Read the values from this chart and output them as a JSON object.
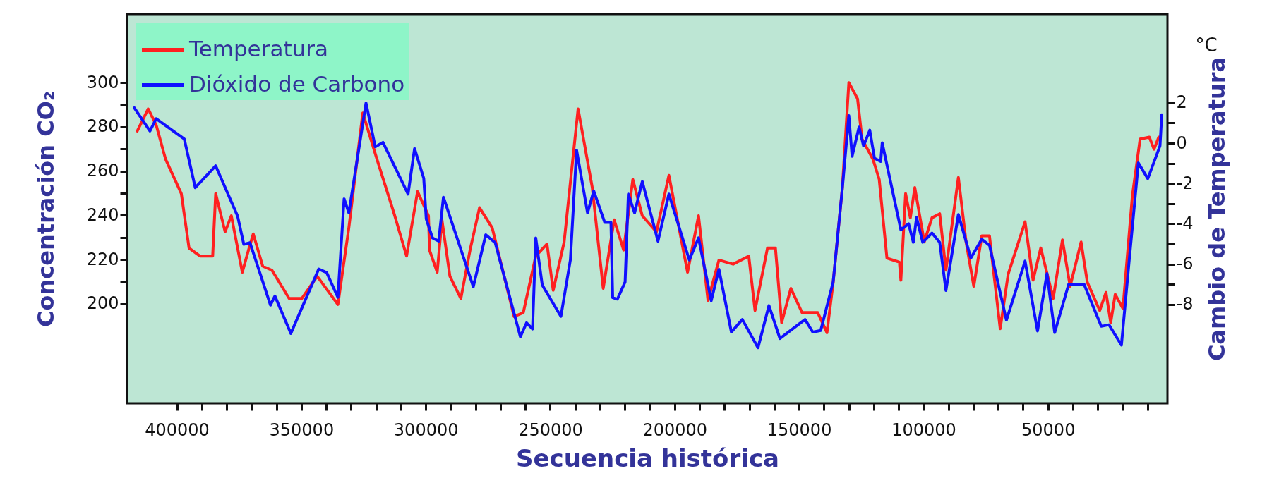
{
  "chart_data": {
    "type": "line",
    "xlabel": "Secuencia histórica",
    "ylabel": "Concentración CO₂",
    "y2label": "Cambio de Temperatura",
    "annotations": [
      "°C"
    ],
    "xlim": [
      420000,
      2000
    ],
    "xticks": [
      400000,
      {
        "value": 390000,
        "label": null
      },
      {
        "value": 380000,
        "label": null
      },
      {
        "value": 370000,
        "label": null
      },
      {
        "value": 360000,
        "label": null
      },
      350000,
      {
        "value": 340000,
        "label": null
      },
      {
        "value": 330000,
        "label": null
      },
      {
        "value": 320000,
        "label": null
      },
      {
        "value": 310000,
        "label": null
      },
      300000,
      {
        "value": 290000,
        "label": null
      },
      {
        "value": 280000,
        "label": null
      },
      {
        "value": 270000,
        "label": null
      },
      {
        "value": 260000,
        "label": null
      },
      250000,
      {
        "value": 240000,
        "label": null
      },
      {
        "value": 230000,
        "label": null
      },
      {
        "value": 220000,
        "label": null
      },
      {
        "value": 210000,
        "label": null
      },
      200000,
      {
        "value": 190000,
        "label": null
      },
      {
        "value": 180000,
        "label": null
      },
      {
        "value": 170000,
        "label": null
      },
      {
        "value": 160000,
        "label": null
      },
      150000,
      {
        "value": 140000,
        "label": null
      },
      {
        "value": 130000,
        "label": null
      },
      {
        "value": 120000,
        "label": null
      },
      {
        "value": 110000,
        "label": null
      },
      100000,
      {
        "value": 90000,
        "label": null
      },
      {
        "value": 80000,
        "label": null
      },
      {
        "value": 70000,
        "label": null
      },
      {
        "value": 60000,
        "label": null
      },
      50000,
      {
        "value": 40000,
        "label": null
      },
      {
        "value": 30000,
        "label": null
      },
      {
        "value": 20000,
        "label": null
      },
      {
        "value": 10000,
        "label": null
      }
    ],
    "ylim": [
      155,
      331
    ],
    "yticks": [
      200,
      {
        "value": 210,
        "label": null
      },
      220,
      {
        "value": 230,
        "label": null
      },
      240,
      {
        "value": 250,
        "label": null
      },
      260,
      {
        "value": 270,
        "label": null
      },
      280,
      {
        "value": 290,
        "label": null
      },
      300
    ],
    "y2lim": [
      -12.9,
      6.4
    ],
    "y2ticks": [
      -8,
      {
        "value": -7,
        "label": null
      },
      -6,
      {
        "value": -5,
        "label": null
      },
      -4,
      {
        "value": -3,
        "label": null
      },
      -2,
      {
        "value": -1,
        "label": null
      },
      0,
      {
        "value": 1,
        "label": null
      },
      2
    ],
    "grid": false,
    "legend": "top left",
    "series": [
      {
        "name": "Temperatura",
        "color": "#ff2020",
        "axis": "y2",
        "x": [
          415900,
          411500,
          408300,
          404500,
          398200,
          395100,
          390700,
          385600,
          384400,
          380600,
          378100,
          373700,
          371200,
          369300,
          365500,
          361800,
          354900,
          349800,
          343600,
          335300,
          330900,
          325300,
          319600,
          312700,
          307700,
          303300,
          298900,
          298500,
          295400,
          293500,
          290300,
          285900,
          282200,
          278400,
          273300,
          264500,
          260800,
          255800,
          251300,
          248800,
          244400,
          238800,
          233100,
          228700,
          224300,
          220500,
          216800,
          213000,
          207300,
          202300,
          194800,
          190400,
          186600,
          182200,
          176500,
          170200,
          167700,
          162700,
          159500,
          157000,
          153300,
          148800,
          142500,
          138800,
          136300,
          132600,
          130000,
          126500,
          124700,
          120300,
          117800,
          114700,
          109700,
          109100,
          107200,
          105300,
          103500,
          99700,
          96600,
          93500,
          91000,
          86000,
          82900,
          79800,
          76600,
          73500,
          69200,
          66000,
          59200,
          56000,
          52900,
          47900,
          44200,
          41100,
          36700,
          34200,
          29200,
          26700,
          24800,
          23000,
          19900,
          16100,
          13000,
          9300,
          7400,
          5500
        ],
        "values": [
          0.6,
          1.7,
          0.9,
          -0.8,
          -2.5,
          -5.2,
          -5.6,
          -5.6,
          -2.5,
          -4.4,
          -3.6,
          -6.4,
          -5.3,
          -4.5,
          -6.1,
          -6.3,
          -7.7,
          -7.7,
          -6.6,
          -8.0,
          -4.2,
          1.5,
          -0.8,
          -3.5,
          -5.6,
          -2.4,
          -3.6,
          -5.3,
          -6.4,
          -3.8,
          -6.6,
          -7.7,
          -5.3,
          -3.2,
          -4.2,
          -8.6,
          -8.4,
          -5.6,
          -5.0,
          -7.3,
          -4.9,
          1.7,
          -2.2,
          -7.2,
          -3.8,
          -5.3,
          -1.8,
          -3.6,
          -4.4,
          -1.6,
          -6.4,
          -3.6,
          -7.8,
          -5.8,
          -6.0,
          -5.6,
          -8.3,
          -5.2,
          -5.2,
          -8.9,
          -7.2,
          -8.4,
          -8.4,
          -9.4,
          -6.9,
          -2.2,
          3.0,
          2.2,
          0.2,
          -0.8,
          -1.8,
          -5.7,
          -5.9,
          -6.8,
          -2.5,
          -3.7,
          -2.2,
          -4.9,
          -3.7,
          -3.5,
          -6.3,
          -1.7,
          -4.9,
          -7.1,
          -4.6,
          -4.6,
          -9.2,
          -6.5,
          -3.9,
          -6.8,
          -5.2,
          -7.7,
          -4.8,
          -7.1,
          -4.9,
          -6.9,
          -8.3,
          -7.4,
          -8.9,
          -7.5,
          -8.2,
          -2.6,
          0.2,
          0.3,
          -0.3,
          0.3
        ]
      },
      {
        "name": "Dióxido de Carbono",
        "color": "#1010ff",
        "axis": "y",
        "x": [
          417100,
          410800,
          408300,
          397000,
          392600,
          384400,
          375600,
          373100,
          370600,
          366300,
          362400,
          360600,
          354200,
          343000,
          339800,
          335300,
          332800,
          330900,
          324000,
          320300,
          317200,
          307100,
          304500,
          300800,
          299800,
          297300,
          294800,
          292900,
          280900,
          275900,
          272100,
          262000,
          259500,
          257100,
          255800,
          253200,
          245700,
          241900,
          239400,
          235000,
          232500,
          228100,
          225600,
          224900,
          223000,
          219900,
          218600,
          216100,
          213000,
          206700,
          202300,
          194100,
          190400,
          185300,
          182200,
          177200,
          172800,
          166500,
          162100,
          157700,
          147600,
          144500,
          141300,
          136300,
          132600,
          130000,
          128700,
          125900,
          124100,
          121600,
          119700,
          117200,
          116600,
          109100,
          106000,
          104100,
          102800,
          100300,
          96600,
          93500,
          91000,
          86000,
          81000,
          76600,
          73500,
          66700,
          59200,
          54200,
          50400,
          47300,
          41700,
          35500,
          28600,
          25500,
          20500,
          17400,
          13700,
          9900,
          5000,
          4300
        ],
        "values": [
          288.6,
          278.1,
          283.7,
          274.5,
          252.5,
          262.4,
          239.7,
          226.9,
          227.6,
          212.8,
          199.4,
          203.5,
          186.6,
          215.7,
          214.1,
          202.9,
          247.5,
          241.1,
          290.8,
          271,
          273,
          249.6,
          270.2,
          256.7,
          238.3,
          229.8,
          228.3,
          248.2,
          207.7,
          231.2,
          227.6,
          185.1,
          191.4,
          188.6,
          229.8,
          208.5,
          194.3,
          219.8,
          269.5,
          241.1,
          251,
          236.8,
          236.8,
          202.8,
          202.1,
          209.9,
          249.6,
          241.1,
          255.3,
          228.3,
          249.6,
          219.8,
          229.8,
          201.4,
          215.6,
          187.2,
          192.9,
          180.1,
          199.2,
          184.3,
          192.9,
          187.2,
          187.9,
          209.9,
          252.5,
          285.1,
          266.7,
          279.9,
          271.4,
          278.5,
          265.8,
          264.4,
          272.8,
          233.4,
          236.2,
          227.8,
          239,
          227.8,
          232,
          227.8,
          206,
          240.4,
          220.7,
          229.2,
          226.4,
          192.6,
          219.3,
          187.7,
          213.7,
          187,
          208.8,
          208.8,
          189.8,
          190.5,
          181.3,
          219.3,
          263.7,
          256.6,
          271.4,
          285.5
        ]
      }
    ]
  }
}
